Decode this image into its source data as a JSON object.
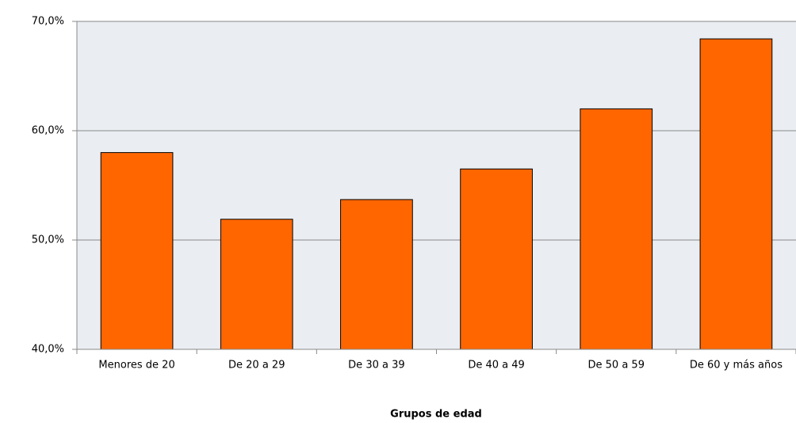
{
  "chart_data": {
    "type": "bar",
    "x_label": "Grupos de edad",
    "categories": [
      "Menores de 20",
      "De 20 a 29",
      "De 30 a 39",
      "De 40 a 49",
      "De 50 a 59",
      "De 60 y más años"
    ],
    "values": [
      58.0,
      51.9,
      53.7,
      56.5,
      62.0,
      68.4
    ],
    "color": "#ff6600",
    "ylim": [
      40,
      70
    ],
    "yticks": [
      {
        "value": 40,
        "label": "40,0%"
      },
      {
        "value": 50,
        "label": "50,0%"
      },
      {
        "value": 60,
        "label": "60,0%"
      },
      {
        "value": 70,
        "label": "70,0%"
      }
    ],
    "grid": true
  }
}
